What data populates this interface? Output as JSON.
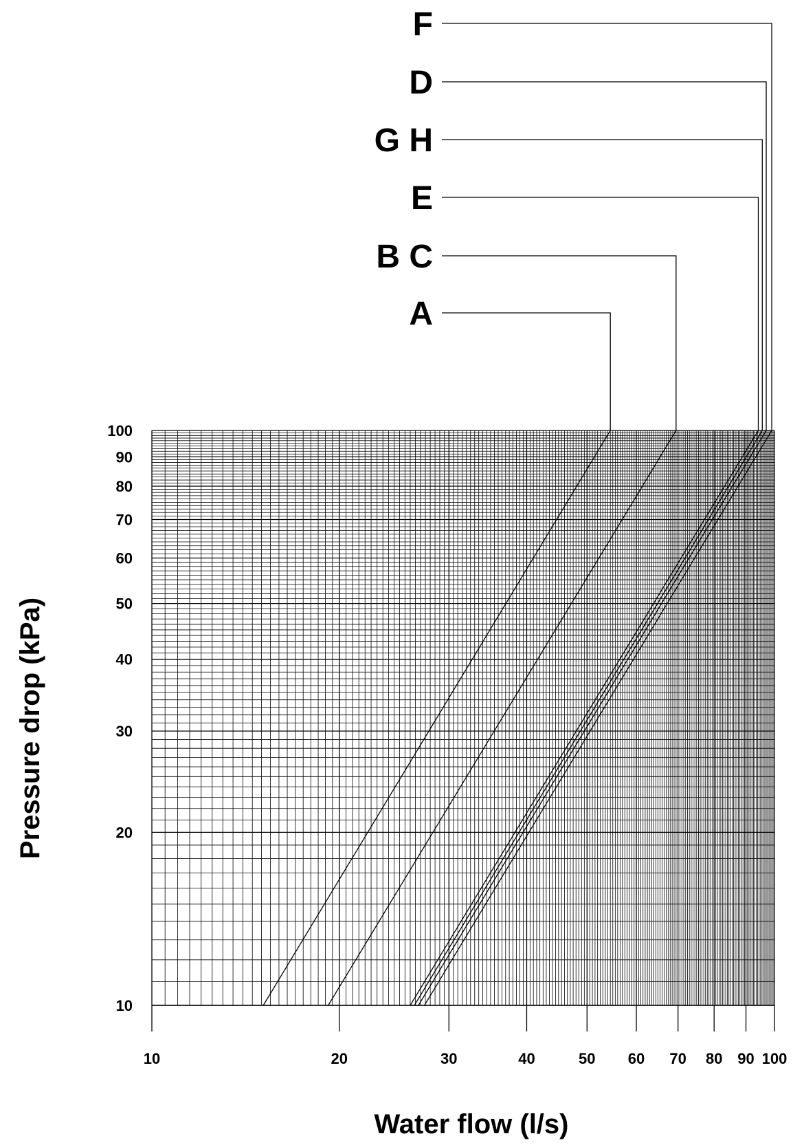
{
  "chart_data": {
    "type": "line",
    "xscale": "log",
    "yscale": "log",
    "xlabel": "Water flow (l/s)",
    "ylabel": "Pressure drop (kPa)",
    "xlim": [
      10,
      100
    ],
    "ylim": [
      10,
      100
    ],
    "grid": true,
    "xticks": [
      "10",
      "20",
      "30",
      "40",
      "50",
      "60",
      "70",
      "80",
      "90",
      "100"
    ],
    "yticks": [
      "10",
      "20",
      "30",
      "40",
      "50",
      "60",
      "70",
      "80",
      "90",
      "100"
    ],
    "series": [
      {
        "name": "A",
        "points": [
          [
            15.1,
            10
          ],
          [
            54.5,
            100
          ]
        ]
      },
      {
        "name": "B C",
        "points": [
          [
            19.2,
            10
          ],
          [
            69.5,
            100
          ]
        ]
      },
      {
        "name": "E",
        "points": [
          [
            26.0,
            10
          ],
          [
            94.2,
            100
          ]
        ]
      },
      {
        "name": "G H",
        "points": [
          [
            26.4,
            10
          ],
          [
            95.6,
            100
          ]
        ]
      },
      {
        "name": "D",
        "points": [
          [
            26.8,
            10
          ],
          [
            97.0,
            100
          ]
        ]
      },
      {
        "name": "F",
        "points": [
          [
            27.4,
            10
          ],
          [
            99.0,
            100
          ]
        ]
      }
    ],
    "labels": [
      {
        "series": "F",
        "text": "F"
      },
      {
        "series": "D",
        "text": "D"
      },
      {
        "series": "G H",
        "text": "G H"
      },
      {
        "series": "E",
        "text": "E"
      },
      {
        "series": "B C",
        "text": "B C"
      },
      {
        "series": "A",
        "text": "A"
      }
    ]
  }
}
